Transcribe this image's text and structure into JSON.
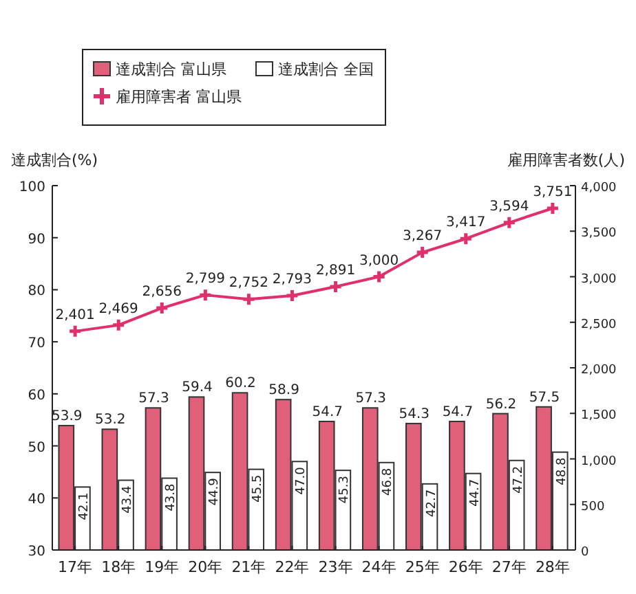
{
  "chart_data": {
    "type": "bar",
    "categories": [
      "17年",
      "18年",
      "19年",
      "20年",
      "21年",
      "22年",
      "23年",
      "24年",
      "25年",
      "26年",
      "27年",
      "28年"
    ],
    "ylabel": "達成割合(%)",
    "y2label": "雇用障害者数(人)",
    "ylim": [
      30,
      100
    ],
    "yticks": [
      30,
      40,
      50,
      60,
      70,
      80,
      90,
      100
    ],
    "y2lim": [
      0,
      4000
    ],
    "y2ticks": [
      0,
      500,
      {
        "value": 1000,
        "label": "1,000"
      },
      {
        "value": 1500,
        "label": "1,500"
      },
      {
        "value": 2000,
        "label": "2,000"
      },
      {
        "value": 2500,
        "label": "2,500"
      },
      {
        "value": 3000,
        "label": "3,000"
      },
      {
        "value": 3500,
        "label": "3,500"
      },
      {
        "value": 4000,
        "label": "4,000"
      }
    ],
    "legend": "left",
    "grid": false,
    "series": [
      {
        "name": "達成割合 富山県",
        "color": "#e0607a",
        "values": [
          53.9,
          53.2,
          57.3,
          59.4,
          60.2,
          58.9,
          54.7,
          57.3,
          54.3,
          54.7,
          56.2,
          57.5
        ],
        "value_labels": [
          "53.9",
          "53.2",
          "57.3",
          "59.4",
          "60.2",
          "58.9",
          "54.7",
          "57.3",
          "54.3",
          "54.7",
          "56.2",
          "57.5"
        ]
      },
      {
        "name": "達成割合 全国",
        "color": "#ffffff",
        "values": [
          42.1,
          43.4,
          43.8,
          44.9,
          45.5,
          47.0,
          45.3,
          46.8,
          42.7,
          44.7,
          47.2,
          48.8
        ],
        "value_labels": [
          "42.1",
          "43.4",
          "43.8",
          "44.9",
          "45.5",
          "47.0",
          "45.3",
          "46.8",
          "42.7",
          "44.7",
          "47.2",
          "48.8"
        ]
      },
      {
        "name": "雇用障害者 富山県",
        "type": "line",
        "axis": "y2",
        "color": "#e0306a",
        "marker": "cross",
        "values": [
          2401,
          2469,
          2656,
          2799,
          2752,
          2793,
          2891,
          3000,
          3267,
          3417,
          3594,
          3751
        ],
        "value_labels": [
          "2,401",
          "2,469",
          "2,656",
          "2,799",
          "2,752",
          "2,793",
          "2,891",
          "3,000",
          "3,267",
          "3,417",
          "3,594",
          "3,751"
        ]
      }
    ]
  }
}
